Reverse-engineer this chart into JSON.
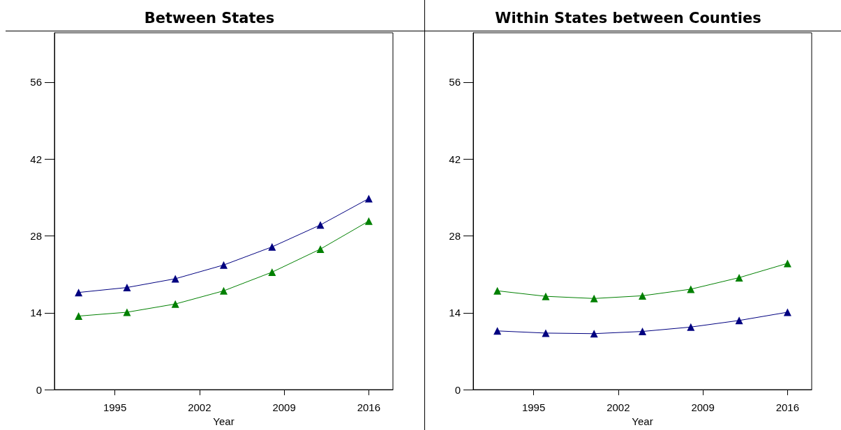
{
  "chart_data": [
    {
      "type": "line",
      "title": "Between States",
      "xlabel": "Year",
      "x": [
        1992,
        1996,
        2000,
        2004,
        2008,
        2012,
        2016
      ],
      "xlim": [
        1990,
        2018
      ],
      "xticks": [
        1995,
        2002,
        2009,
        2016
      ],
      "ylim": [
        0,
        65
      ],
      "yticks": [
        0,
        14,
        28,
        42,
        56
      ],
      "grid": false,
      "marker": "triangle",
      "line_style": "solid",
      "series": [
        {
          "color": "#000080",
          "values": [
            17.7,
            18.6,
            20.2,
            22.7,
            26.0,
            30.0,
            34.8
          ]
        },
        {
          "color": "#008000",
          "values": [
            13.4,
            14.1,
            15.6,
            18.0,
            21.4,
            25.6,
            30.7
          ]
        }
      ]
    },
    {
      "type": "line",
      "title": "Within States between Counties",
      "xlabel": "Year",
      "x": [
        1992,
        1996,
        2000,
        2004,
        2008,
        2012,
        2016
      ],
      "xlim": [
        1990,
        2018
      ],
      "xticks": [
        1995,
        2002,
        2009,
        2016
      ],
      "ylim": [
        0,
        65
      ],
      "yticks": [
        0,
        14,
        28,
        42,
        56
      ],
      "grid": false,
      "marker": "triangle",
      "line_style": "solid",
      "series": [
        {
          "color": "#008000",
          "values": [
            18.0,
            17.0,
            16.6,
            17.1,
            18.3,
            20.4,
            23.0
          ]
        },
        {
          "color": "#000080",
          "values": [
            10.7,
            10.3,
            10.2,
            10.6,
            11.4,
            12.6,
            14.1
          ]
        }
      ]
    }
  ]
}
